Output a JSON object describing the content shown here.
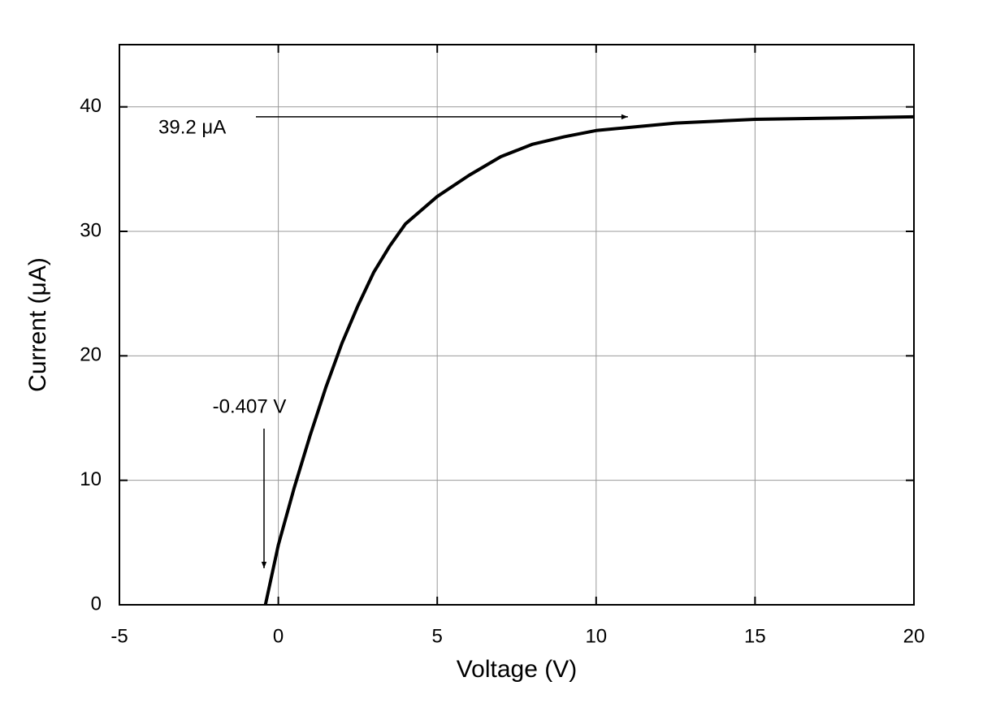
{
  "chart_data": {
    "type": "line",
    "xlabel": "Voltage (V)",
    "ylabel": "Current (μA)",
    "x": [
      -0.407,
      0,
      0.5,
      1,
      1.5,
      2,
      2.5,
      3,
      3.5,
      4,
      5,
      6,
      7,
      8,
      9,
      10,
      12.5,
      15,
      17.5,
      20
    ],
    "values": [
      0,
      4.8,
      9.4,
      13.6,
      17.5,
      21,
      24,
      26.7,
      28.8,
      30.6,
      32.8,
      34.5,
      36,
      37,
      37.6,
      38.1,
      38.7,
      39,
      39.1,
      39.2
    ],
    "color": "#000000",
    "xlim": [
      -5,
      20
    ],
    "xticks": [
      -5,
      0,
      5,
      10,
      15,
      20
    ],
    "ylim": [
      0,
      45
    ],
    "yticks": [
      0,
      10,
      20,
      30,
      40
    ],
    "grid": true,
    "annotations": [
      {
        "text": "39.2 μA",
        "x": 11,
        "y": 39.2
      },
      {
        "text": "-0.407 V",
        "x": -0.45,
        "y": 0
      }
    ]
  }
}
